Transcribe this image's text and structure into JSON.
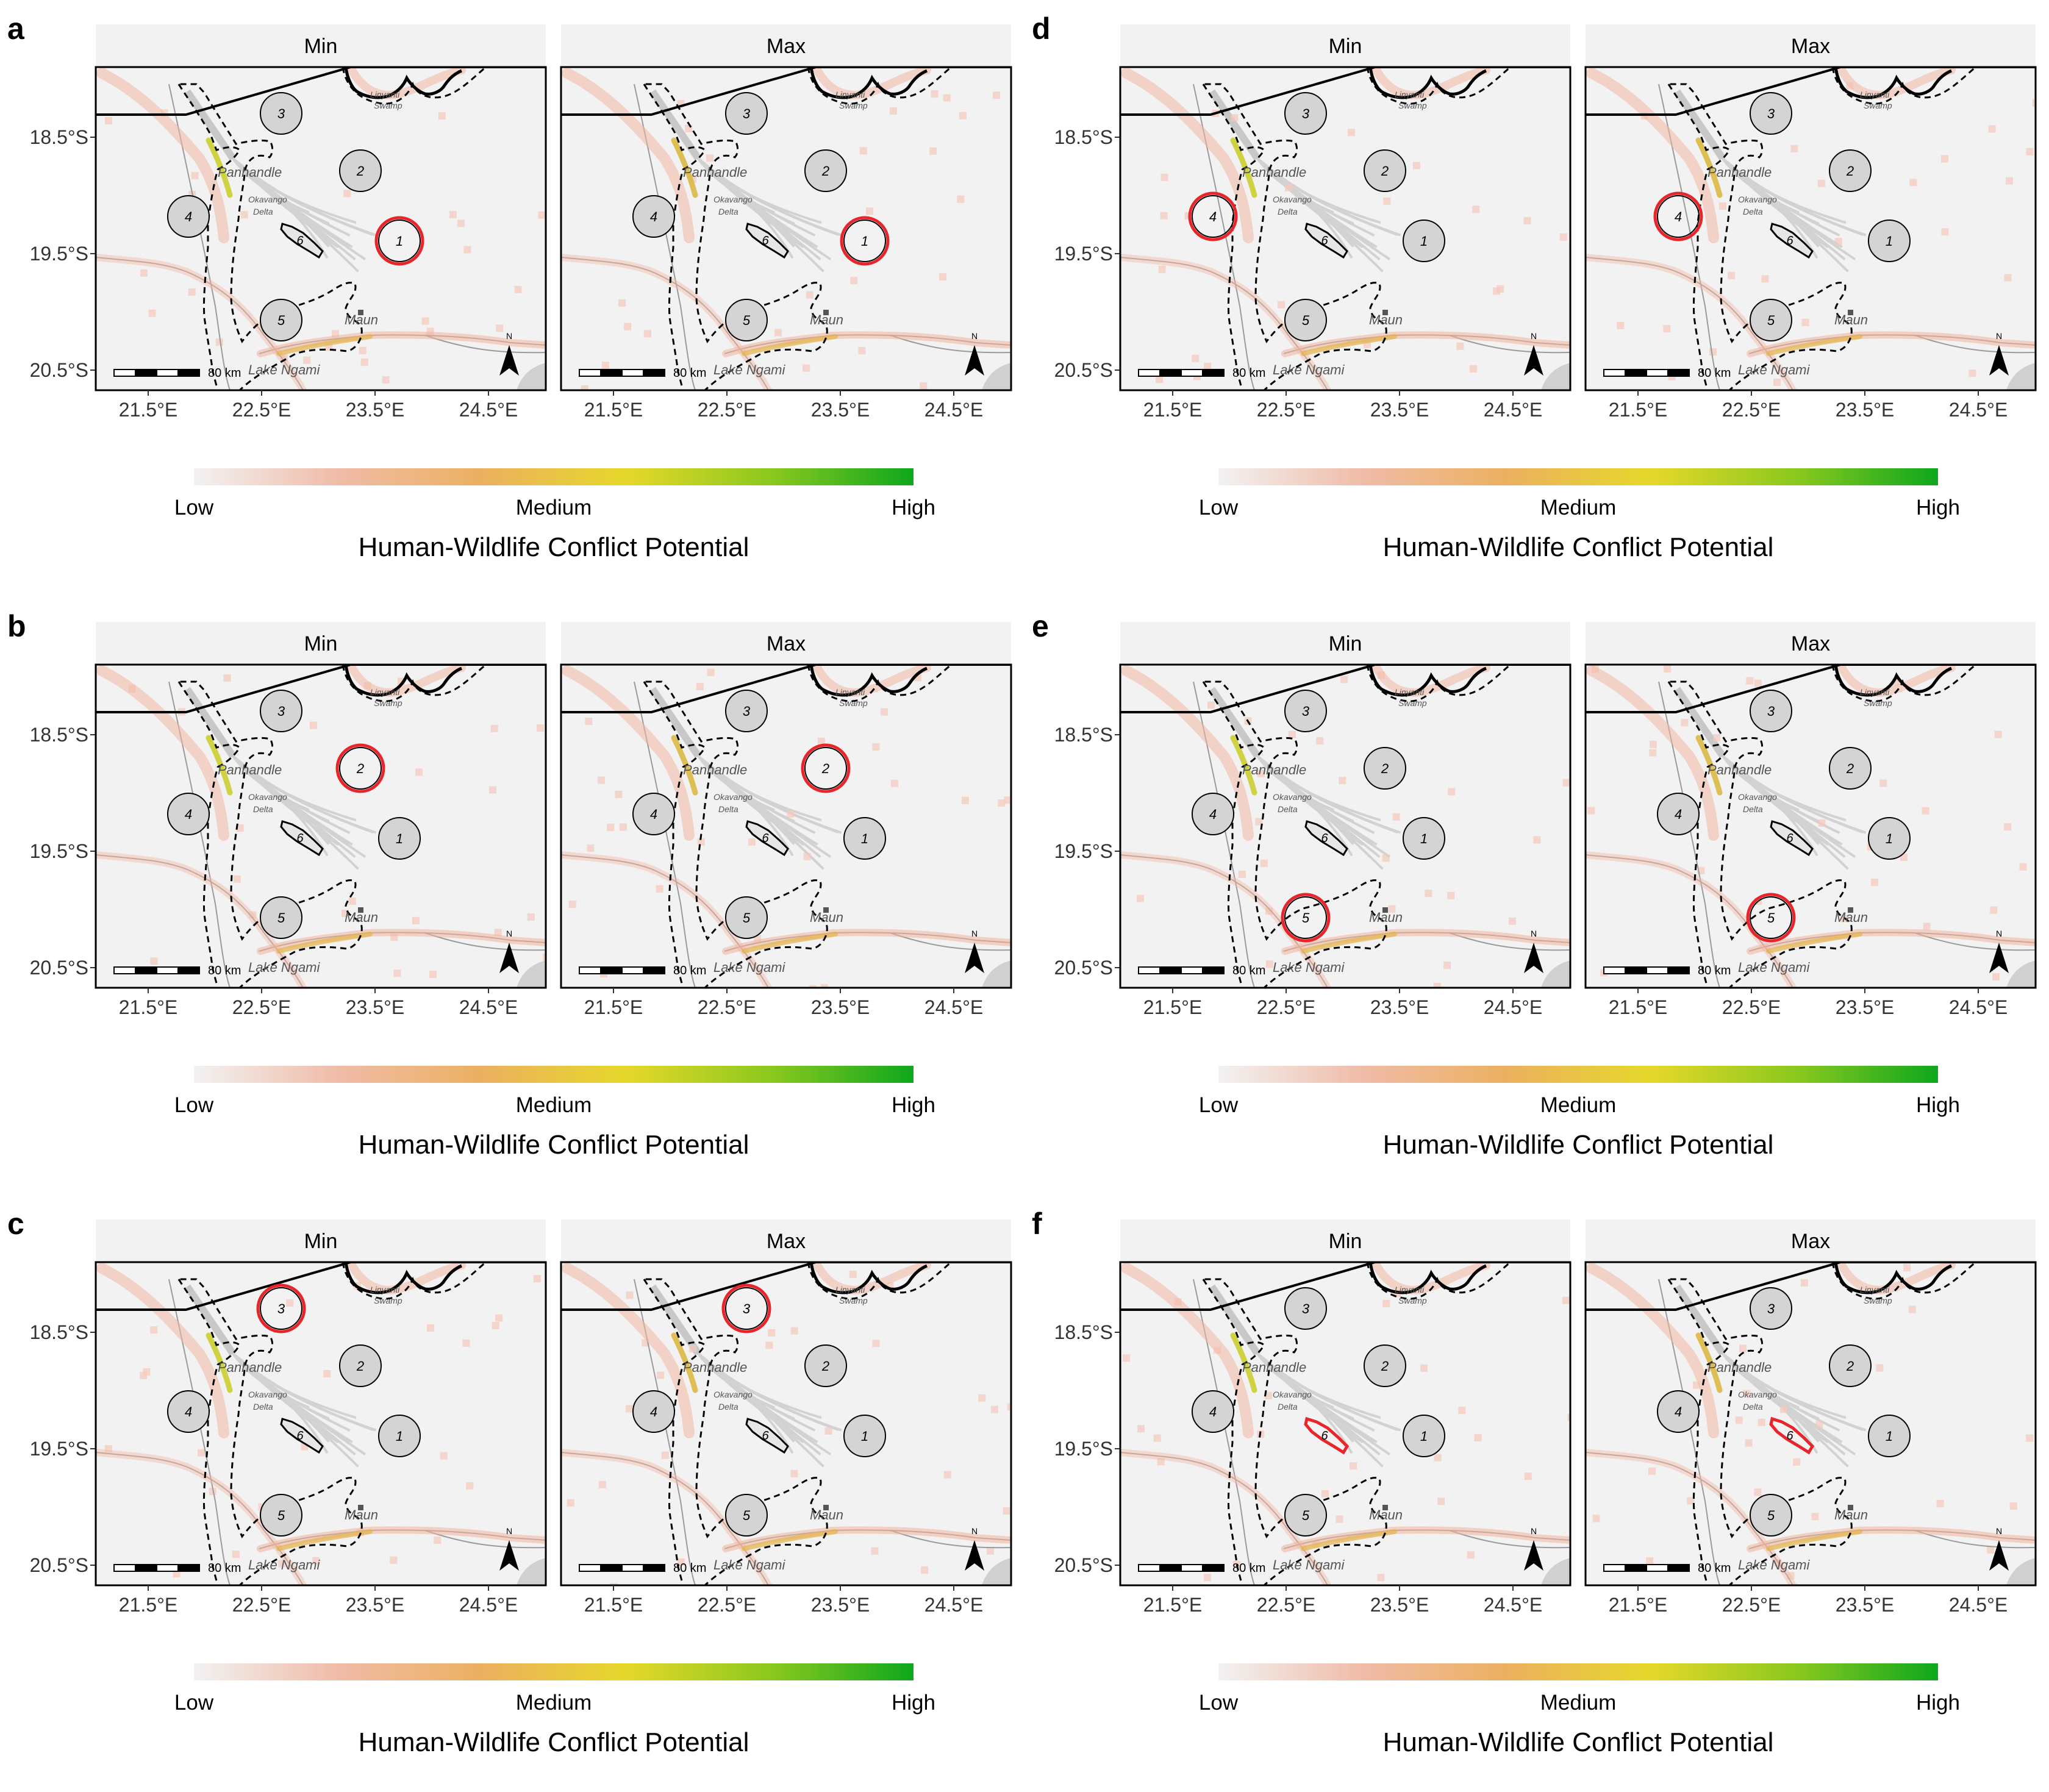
{
  "panels": [
    {
      "letter": "a",
      "highlight_zone": "1"
    },
    {
      "letter": "b",
      "highlight_zone": "2"
    },
    {
      "letter": "c",
      "highlight_zone": "3"
    },
    {
      "letter": "d",
      "highlight_zone": "4"
    },
    {
      "letter": "e",
      "highlight_zone": "5"
    },
    {
      "letter": "f",
      "highlight_zone": "6"
    }
  ],
  "facets": [
    "Min",
    "Max"
  ],
  "x_ticks": [
    "21.5°E",
    "22.5°E",
    "23.5°E",
    "24.5°E"
  ],
  "y_ticks": [
    "18.5°S",
    "19.5°S",
    "20.5°S"
  ],
  "zone_labels": [
    "1",
    "2",
    "3",
    "4",
    "5",
    "6"
  ],
  "place_labels": {
    "panhandle": "Panhandle",
    "okavango": "Okavango",
    "delta": "Delta",
    "maun": "Maun",
    "lake": "Lake Ngami",
    "linyanti": "Linyanti",
    "swamp": "Swamp"
  },
  "scale_bar": "80 km",
  "north": "N",
  "legend": {
    "low": "Low",
    "medium": "Medium",
    "high": "High",
    "title": "Human-Wildlife Conflict Potential",
    "colors": [
      "#f2f2f2",
      "#f0bca8",
      "#ecb060",
      "#e6d82a",
      "#8cc81e",
      "#0ea81e"
    ]
  },
  "colors": {
    "panel_bg": "#f2f2f2",
    "strip_bg": "#f2f2f2",
    "highlight": "#e8252a",
    "zone_fill": "#d4d4d4",
    "delta_fill": "#d6d6d6"
  }
}
